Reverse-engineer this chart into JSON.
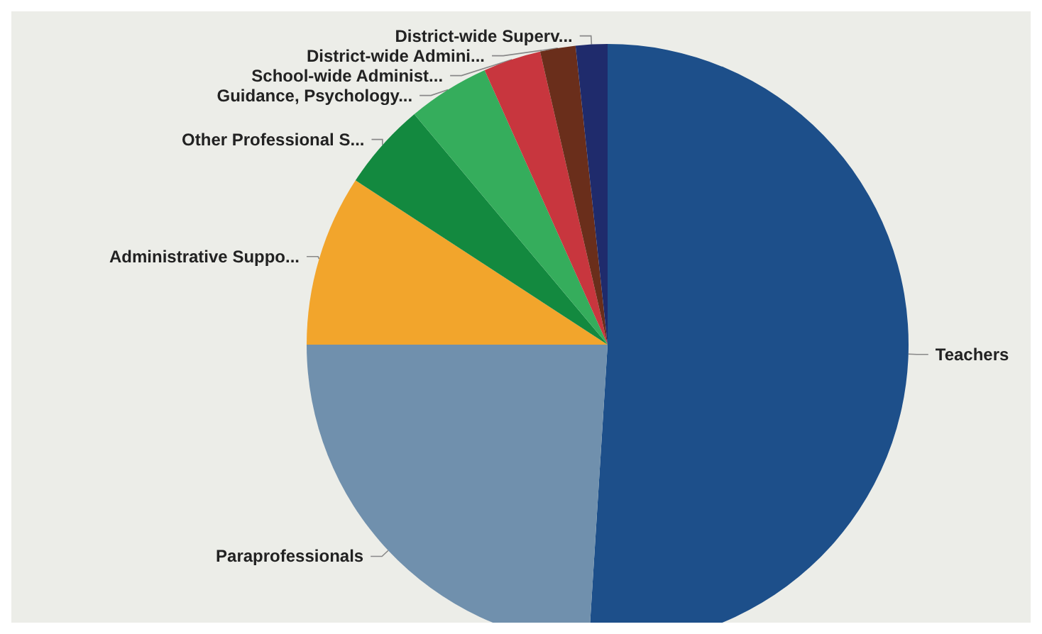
{
  "chart_data": {
    "type": "pie",
    "categories": [
      "Teachers",
      "Paraprofessionals",
      "Administrative Suppo...",
      "Other Professional S...",
      "Guidance, Psychology...",
      "School-wide Administ...",
      "District-wide Admini...",
      "District-wide Superv..."
    ],
    "values": [
      51,
      24,
      9.2,
      4.7,
      4.4,
      3.1,
      1.9,
      1.7
    ],
    "colors": [
      "#1d4f8a",
      "#7090ad",
      "#f2a52c",
      "#13893f",
      "#35ad5c",
      "#c8363e",
      "#6a2e1b",
      "#1f2b6c"
    ],
    "legend": false
  }
}
